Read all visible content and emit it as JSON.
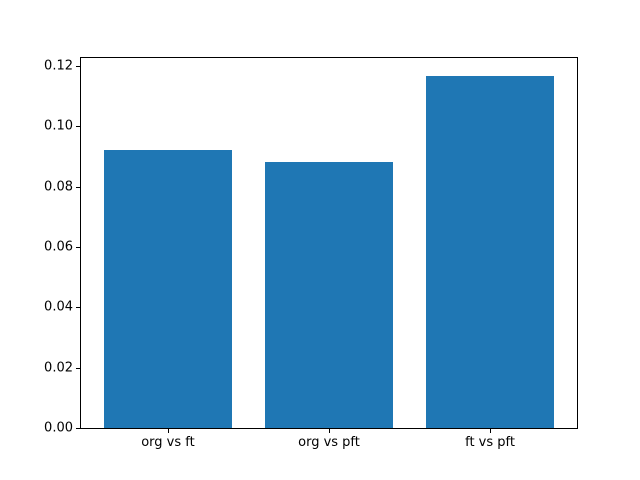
{
  "chart_data": {
    "type": "bar",
    "categories": [
      "org vs ft",
      "org vs pft",
      "ft vs pft"
    ],
    "values": [
      0.092,
      0.088,
      0.1165
    ],
    "title": "",
    "xlabel": "",
    "ylabel": "",
    "ylim": [
      0,
      0.1226
    ],
    "yticks": [
      0,
      0.02,
      0.04,
      0.06,
      0.08,
      0.1,
      0.12
    ],
    "ytick_labels": [
      "0.00",
      "0.02",
      "0.04",
      "0.06",
      "0.08",
      "0.10",
      "0.12"
    ],
    "bar_color": "#1f77b4",
    "axis_color": "#000000",
    "background_color": "#ffffff",
    "grid": false,
    "legend": null,
    "bar_width_fraction": 0.8
  }
}
